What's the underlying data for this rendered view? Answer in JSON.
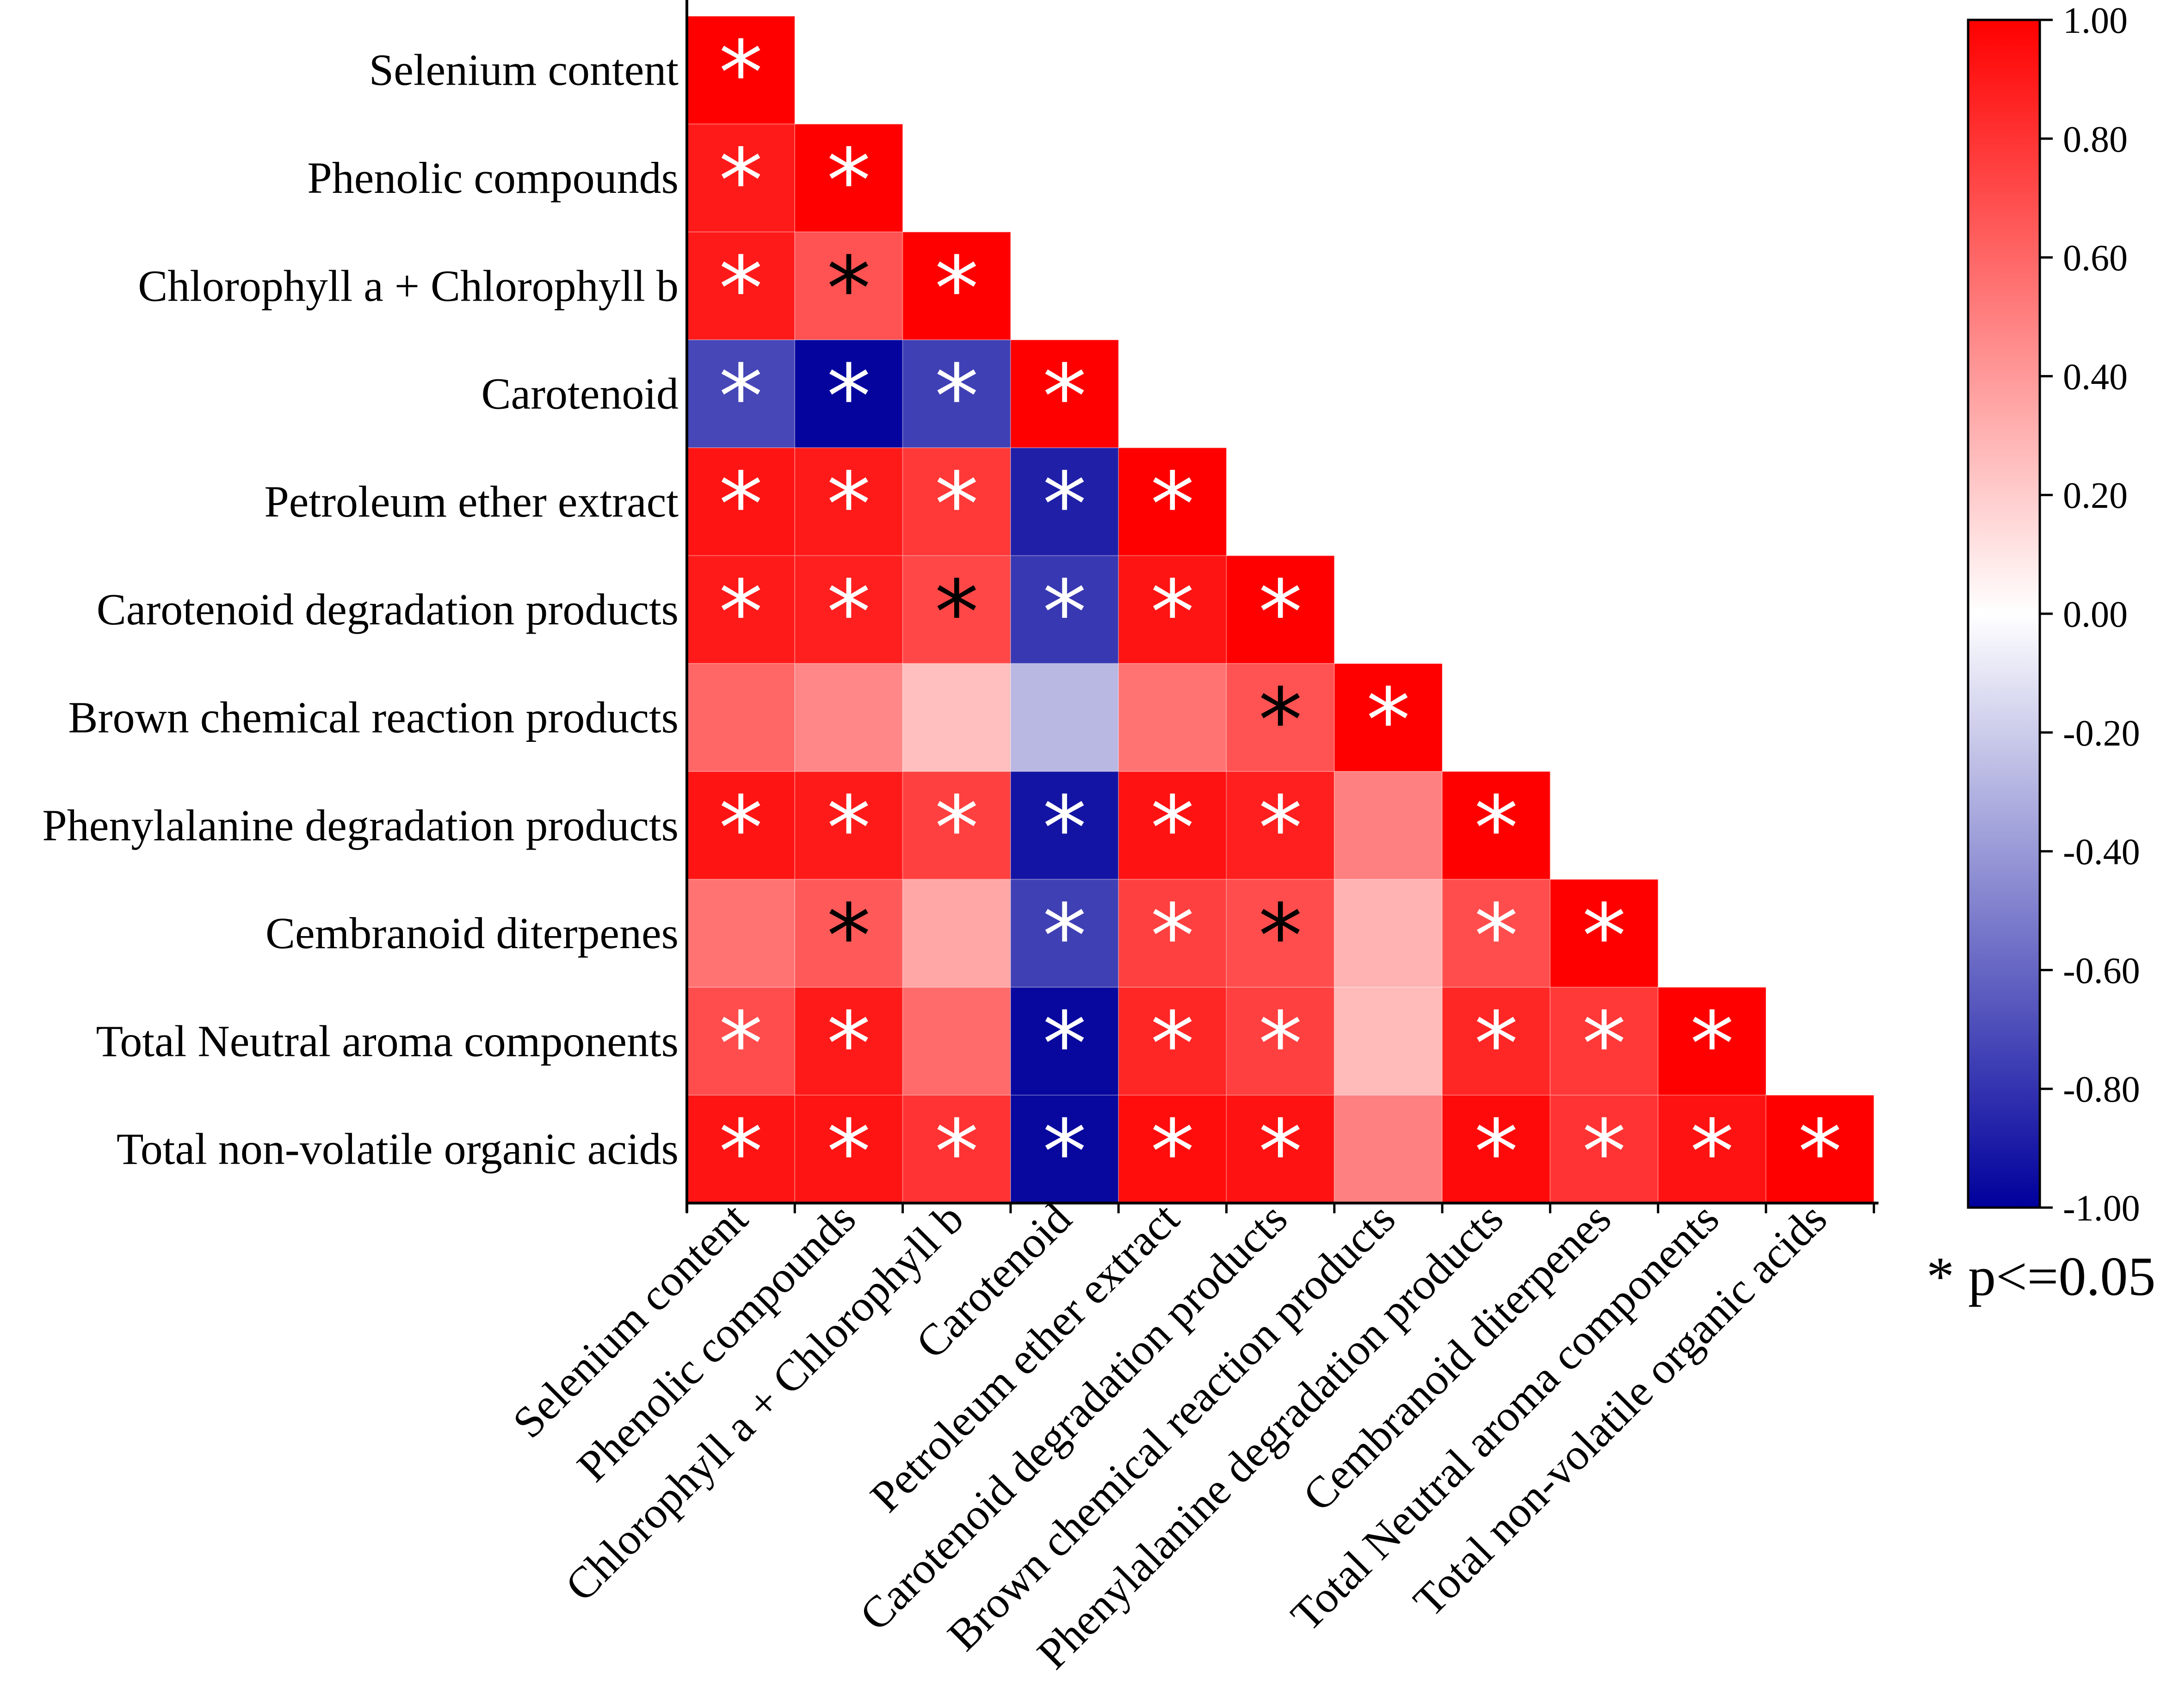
{
  "chart_data": {
    "type": "heatmap",
    "subtype": "lower-triangular correlation matrix",
    "variables": [
      "Selenium content",
      "Phenolic compounds",
      "Chlorophyll a + Chlorophyll b",
      "Carotenoid",
      "Petroleum ether extract",
      "Carotenoid degradation products",
      "Brown chemical reaction products",
      "Phenylalanine degradation products",
      "Cembranoid diterpenes",
      "Total Neutral aroma components",
      "Total non-volatile organic acids"
    ],
    "values": [
      [
        1.0
      ],
      [
        0.9,
        1.0
      ],
      [
        0.9,
        0.68,
        1.0
      ],
      [
        -0.72,
        -0.98,
        -0.75,
        1.0
      ],
      [
        0.92,
        0.9,
        0.78,
        -0.88,
        1.0
      ],
      [
        0.9,
        0.88,
        0.72,
        -0.78,
        0.92,
        1.0
      ],
      [
        0.6,
        0.47,
        0.25,
        -0.28,
        0.55,
        0.68,
        1.0
      ],
      [
        0.92,
        0.9,
        0.75,
        -0.92,
        0.93,
        0.88,
        0.5,
        1.0
      ],
      [
        0.55,
        0.65,
        0.35,
        -0.75,
        0.75,
        0.7,
        0.3,
        0.7,
        1.0
      ],
      [
        0.7,
        0.9,
        0.58,
        -0.97,
        0.85,
        0.75,
        0.27,
        0.85,
        0.78,
        1.0
      ],
      [
        0.92,
        0.92,
        0.8,
        -0.97,
        0.95,
        0.93,
        0.5,
        0.96,
        0.8,
        0.93,
        1.0
      ]
    ],
    "significance": [
      [
        true
      ],
      [
        true,
        true
      ],
      [
        true,
        true,
        true
      ],
      [
        true,
        true,
        true,
        true
      ],
      [
        true,
        true,
        true,
        true,
        true
      ],
      [
        true,
        true,
        true,
        true,
        true,
        true
      ],
      [
        false,
        false,
        false,
        false,
        false,
        true,
        true
      ],
      [
        true,
        true,
        true,
        true,
        true,
        true,
        false,
        true
      ],
      [
        false,
        true,
        false,
        true,
        true,
        true,
        false,
        true,
        true
      ],
      [
        true,
        true,
        false,
        true,
        true,
        true,
        false,
        true,
        true,
        true
      ],
      [
        true,
        true,
        true,
        true,
        true,
        true,
        false,
        true,
        true,
        true,
        true
      ]
    ],
    "star_color": [
      [
        "white"
      ],
      [
        "white",
        "white"
      ],
      [
        "white",
        "black",
        "white"
      ],
      [
        "white",
        "white",
        "white",
        "white"
      ],
      [
        "white",
        "white",
        "white",
        "white",
        "white"
      ],
      [
        "white",
        "white",
        "black",
        "white",
        "white",
        "white"
      ],
      [
        null,
        null,
        null,
        null,
        null,
        "black",
        "white"
      ],
      [
        "white",
        "white",
        "white",
        "white",
        "white",
        "white",
        null,
        "white"
      ],
      [
        null,
        "black",
        null,
        "white",
        "white",
        "black",
        null,
        "white",
        "white"
      ],
      [
        "white",
        "white",
        null,
        "white",
        "white",
        "white",
        null,
        "white",
        "white",
        "white"
      ],
      [
        "white",
        "white",
        "white",
        "white",
        "white",
        "white",
        null,
        "white",
        "white",
        "white",
        "white"
      ]
    ],
    "colorbar": {
      "range": [
        -1.0,
        1.0
      ],
      "ticks": [
        "1.00",
        "0.80",
        "0.60",
        "0.40",
        "0.20",
        "0.00",
        "-0.20",
        "-0.40",
        "-0.60",
        "-0.80",
        "-1.00"
      ],
      "colors": {
        "positive": "#ff0000",
        "zero": "#ffffff",
        "negative": "#00009c"
      }
    },
    "significance_marker": "*",
    "legend_note": "* p<=0.05"
  }
}
